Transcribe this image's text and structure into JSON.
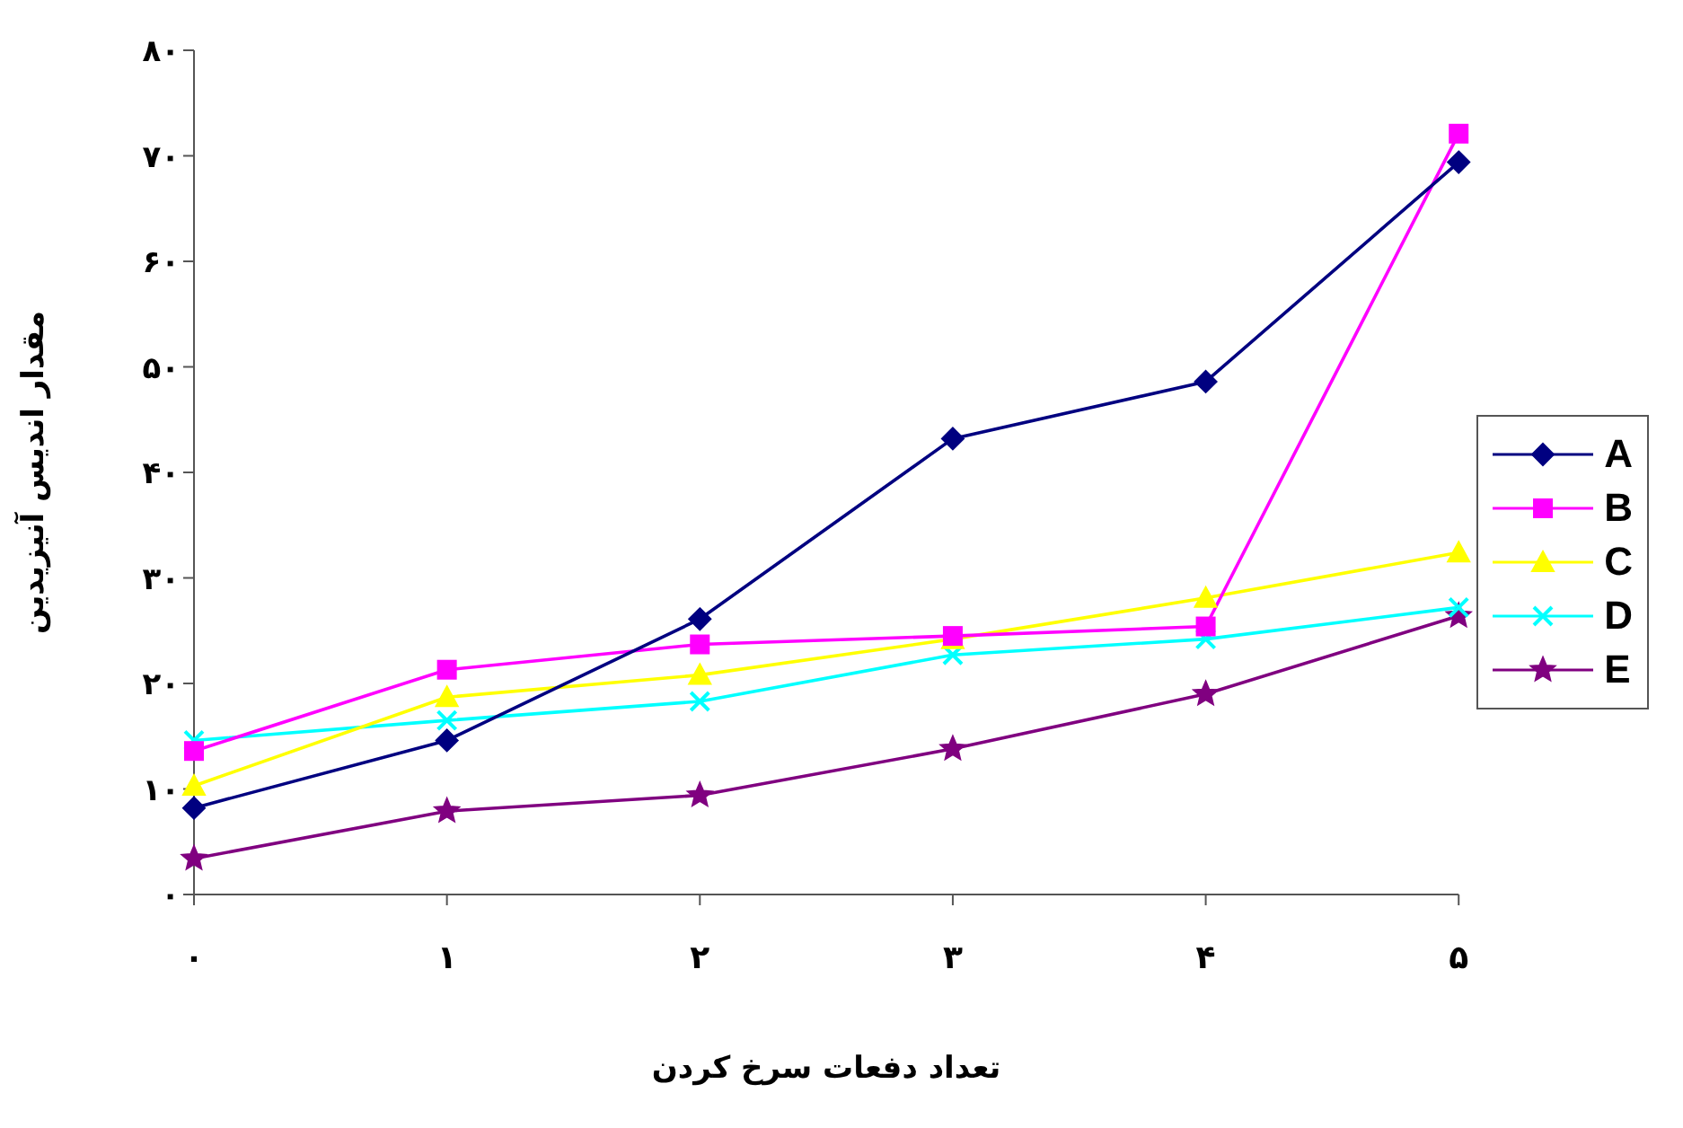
{
  "chart_data": {
    "type": "line",
    "xlabel": "تعداد دفعات سرخ کردن",
    "ylabel": "مقدار اندیس آنیزیدین",
    "categories": [
      "۰",
      "۱",
      "۲",
      "۳",
      "۴",
      "۵"
    ],
    "series": [
      {
        "name": "A",
        "color": "#000080",
        "marker": "diamond",
        "values": [
          8.2,
          14.6,
          26.1,
          43.2,
          48.6,
          69.4
        ]
      },
      {
        "name": "B",
        "color": "#ff00ff",
        "marker": "square",
        "values": [
          13.6,
          21.3,
          23.7,
          24.5,
          25.4,
          72.1
        ]
      },
      {
        "name": "C",
        "color": "#ffff00",
        "marker": "triangle",
        "values": [
          10.3,
          18.7,
          20.8,
          24.2,
          28.1,
          32.4
        ]
      },
      {
        "name": "D",
        "color": "#00ffff",
        "marker": "cross",
        "values": [
          14.6,
          16.5,
          18.3,
          22.7,
          24.2,
          27.2
        ]
      },
      {
        "name": "E",
        "color": "#800080",
        "marker": "star",
        "values": [
          3.4,
          7.9,
          9.4,
          13.8,
          19.0,
          26.4
        ]
      }
    ],
    "ylim": [
      0,
      80
    ],
    "yticks": [
      {
        "value": 0,
        "label": "۰"
      },
      {
        "value": 10,
        "label": "۱۰"
      },
      {
        "value": 20,
        "label": "۲۰"
      },
      {
        "value": 30,
        "label": "۳۰"
      },
      {
        "value": 40,
        "label": "۴۰"
      },
      {
        "value": 50,
        "label": "۵۰"
      },
      {
        "value": 60,
        "label": "۶۰"
      },
      {
        "value": 70,
        "label": "۷۰"
      },
      {
        "value": 80,
        "label": "۸۰"
      }
    ],
    "grid": false,
    "legend": "right",
    "line_style": "solid"
  }
}
